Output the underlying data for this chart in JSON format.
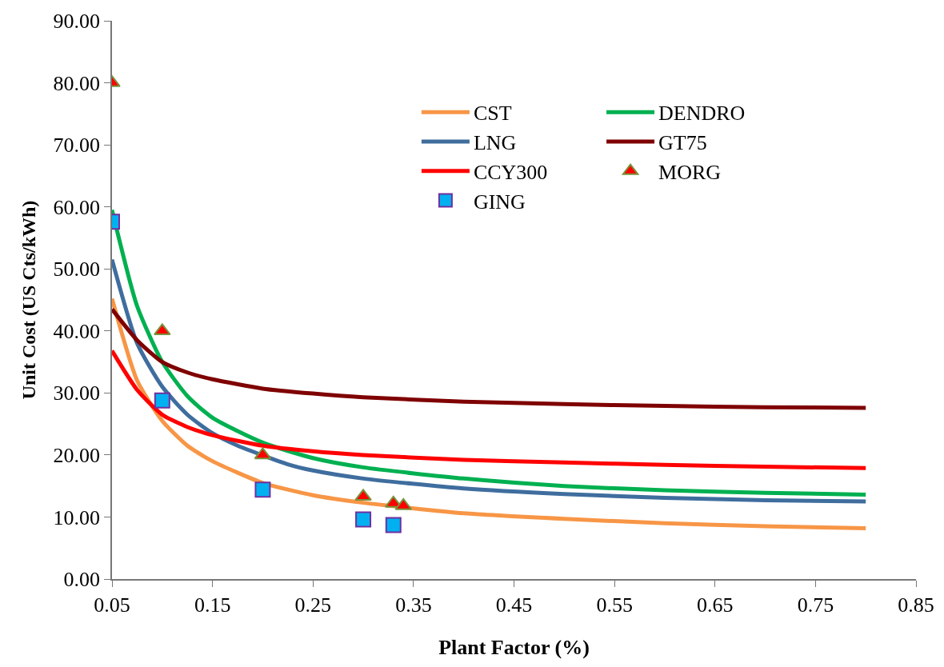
{
  "chart_data": {
    "type": "line",
    "xlabel": "Plant Factor (%)",
    "ylabel": "Unit Cost (US Cts/kWh)",
    "xlim": [
      0.05,
      0.85
    ],
    "xticks": [
      {
        "value": 0.05,
        "label": "0.05"
      },
      {
        "value": 0.15,
        "label": "0.15"
      },
      {
        "value": 0.25,
        "label": "0.25"
      },
      {
        "value": 0.35,
        "label": "0.35"
      },
      {
        "value": 0.45,
        "label": "0.45"
      },
      {
        "value": 0.55,
        "label": "0.55"
      },
      {
        "value": 0.65,
        "label": "0.65"
      },
      {
        "value": 0.75,
        "label": "0.75"
      },
      {
        "value": 0.85,
        "label": "0.85"
      }
    ],
    "ylim": [
      0,
      90
    ],
    "yticks": [
      {
        "value": 0,
        "label": "0.00"
      },
      {
        "value": 10,
        "label": "10.00"
      },
      {
        "value": 20,
        "label": "20.00"
      },
      {
        "value": 30,
        "label": "30.00"
      },
      {
        "value": 40,
        "label": "40.00"
      },
      {
        "value": 50,
        "label": "50.00"
      },
      {
        "value": 60,
        "label": "60.00"
      },
      {
        "value": 70,
        "label": "70.00"
      },
      {
        "value": 80,
        "label": "80.00"
      },
      {
        "value": 90,
        "label": "90.00"
      }
    ],
    "grid": false,
    "legend": "top",
    "line_style": "solid",
    "x": [
      0.05,
      0.075,
      0.1,
      0.125,
      0.15,
      0.2,
      0.25,
      0.3,
      0.4,
      0.5,
      0.6,
      0.7,
      0.8
    ],
    "series": [
      {
        "name": "CST",
        "color": "#f79646",
        "marker": "none",
        "values": [
          45.2,
          32,
          25.5,
          21.5,
          19,
          15.5,
          13.5,
          12.3,
          10.6,
          9.7,
          9,
          8.5,
          8.2
        ]
      },
      {
        "name": "DENDRO",
        "color": "#00b050",
        "marker": "none",
        "values": [
          59.5,
          44,
          35,
          29.5,
          26,
          22,
          19.5,
          18,
          16.2,
          15,
          14.3,
          13.9,
          13.6
        ]
      },
      {
        "name": "LNG",
        "color": "#3f6d9e",
        "marker": "none",
        "x": [
          0.05,
          0.075,
          0.1,
          0.125,
          0.15,
          0.175,
          0.225,
          0.25,
          0.3,
          0.4,
          0.5,
          0.6,
          0.7,
          0.8
        ],
        "values": [
          51.5,
          38,
          31,
          26.5,
          23.5,
          21.5,
          18.5,
          17.5,
          16.2,
          14.6,
          13.7,
          13.1,
          12.7,
          12.5
        ]
      },
      {
        "name": "GT75",
        "color": "#7f0000",
        "marker": "none",
        "values": [
          43.5,
          38.5,
          35,
          33.3,
          32.2,
          30.7,
          29.9,
          29.3,
          28.6,
          28.2,
          27.9,
          27.7,
          27.6
        ]
      },
      {
        "name": "CCY300",
        "color": "#ff0000",
        "marker": "none",
        "values": [
          36.8,
          30.5,
          26.5,
          24.5,
          23.2,
          21.5,
          20.6,
          20,
          19.2,
          18.8,
          18.4,
          18.1,
          17.9
        ]
      },
      {
        "name": "MORG",
        "type": "scatter",
        "color": "#ff0000",
        "marker": "triangle",
        "x": [
          0.05,
          0.1,
          0.2,
          0.3,
          0.33,
          0.34
        ],
        "values": [
          80,
          40,
          20,
          13.3,
          12.2,
          11.8
        ]
      },
      {
        "name": "GING",
        "type": "scatter",
        "color": "#00b0f0",
        "marker": "square",
        "x": [
          0.05,
          0.1,
          0.2,
          0.3,
          0.33
        ],
        "values": [
          57.6,
          28.8,
          14.4,
          9.6,
          8.7
        ]
      }
    ]
  }
}
